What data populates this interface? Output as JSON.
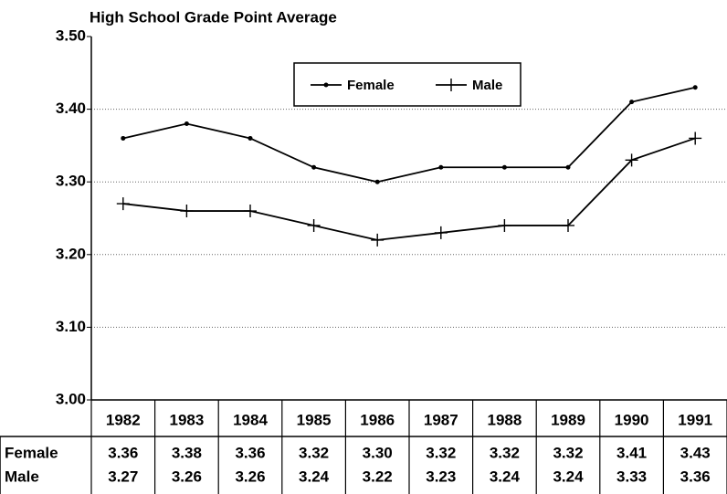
{
  "chart_data": {
    "type": "line",
    "title": "High School Grade Point Average",
    "categories": [
      "1982",
      "1983",
      "1984",
      "1985",
      "1986",
      "1987",
      "1988",
      "1989",
      "1990",
      "1991"
    ],
    "series": [
      {
        "name": "Female",
        "color": "#000000",
        "marker": "dot",
        "values": [
          3.36,
          3.38,
          3.36,
          3.32,
          3.3,
          3.32,
          3.32,
          3.32,
          3.41,
          3.43
        ],
        "value_labels": [
          "3.36",
          "3.38",
          "3.36",
          "3.32",
          "3.30",
          "3.32",
          "3.32",
          "3.32",
          "3.41",
          "3.43"
        ]
      },
      {
        "name": "Male",
        "color": "#000000",
        "marker": "plus",
        "values": [
          3.27,
          3.26,
          3.26,
          3.24,
          3.22,
          3.23,
          3.24,
          3.24,
          3.33,
          3.36
        ],
        "value_labels": [
          "3.27",
          "3.26",
          "3.26",
          "3.24",
          "3.22",
          "3.23",
          "3.24",
          "3.24",
          "3.33",
          "3.36"
        ]
      }
    ],
    "ylim": [
      3.0,
      3.5
    ],
    "yticks": [
      {
        "value": 3.0,
        "label": "3.00"
      },
      {
        "value": 3.1,
        "label": "3.10"
      },
      {
        "value": 3.2,
        "label": "3.20"
      },
      {
        "value": 3.3,
        "label": "3.30"
      },
      {
        "value": 3.4,
        "label": "3.40"
      },
      {
        "value": 3.5,
        "label": "3.50"
      }
    ],
    "grid": true,
    "legend": "top"
  }
}
